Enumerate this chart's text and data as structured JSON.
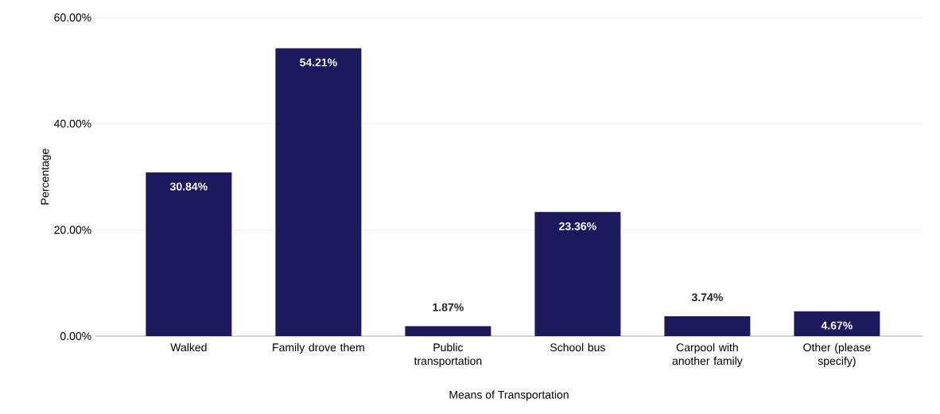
{
  "chart_data": {
    "type": "bar",
    "xlabel": "Means of Transportation",
    "ylabel": "Percentage",
    "categories": [
      "Walked",
      "Family drove them",
      "Public transportation",
      "School bus",
      "Carpool with another family",
      "Other (please specify)"
    ],
    "values": [
      30.84,
      54.21,
      1.87,
      23.36,
      3.74,
      4.67
    ],
    "value_labels": [
      "30.84%",
      "54.21%",
      "1.87%",
      "23.36%",
      "3.74%",
      "4.67%"
    ],
    "color": "#1c1a5c",
    "ylim": [
      0,
      60
    ],
    "yticks": [
      {
        "value": 0,
        "label": "0.00%"
      },
      {
        "value": 20,
        "label": "20.00%"
      },
      {
        "value": 40,
        "label": "40.00%"
      },
      {
        "value": 60,
        "label": "60.00%"
      }
    ],
    "grid": "y"
  }
}
